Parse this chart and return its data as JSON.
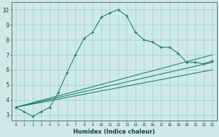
{
  "xlabel": "Humidex (Indice chaleur)",
  "ylabel": "",
  "bg_color": "#ceeae8",
  "grid_color": "#a8cece",
  "line_color": "#1a7a6e",
  "xlim": [
    -0.5,
    23.5
  ],
  "ylim": [
    2.6,
    10.5
  ],
  "xticks": [
    0,
    1,
    2,
    3,
    4,
    5,
    6,
    7,
    8,
    9,
    10,
    11,
    12,
    13,
    14,
    15,
    16,
    17,
    18,
    19,
    20,
    21,
    22,
    23
  ],
  "yticks": [
    3,
    4,
    5,
    6,
    7,
    8,
    9,
    10
  ],
  "curve1_x": [
    0,
    1,
    2,
    3,
    4,
    5,
    6,
    7,
    8,
    9,
    10,
    11,
    12,
    13,
    14,
    15,
    16,
    17,
    18,
    19,
    20,
    21,
    22,
    23
  ],
  "curve1_y": [
    3.5,
    3.2,
    2.9,
    3.2,
    3.5,
    4.5,
    5.8,
    7.0,
    8.1,
    8.5,
    9.5,
    9.8,
    10.0,
    9.6,
    8.5,
    8.0,
    7.85,
    7.5,
    7.5,
    7.1,
    6.5,
    6.5,
    6.4,
    6.6
  ],
  "line2_x": [
    0,
    23
  ],
  "line2_y": [
    3.5,
    7.0
  ],
  "line3_x": [
    0,
    23
  ],
  "line3_y": [
    3.5,
    6.5
  ],
  "line4_x": [
    0,
    23
  ],
  "line4_y": [
    3.5,
    6.0
  ]
}
